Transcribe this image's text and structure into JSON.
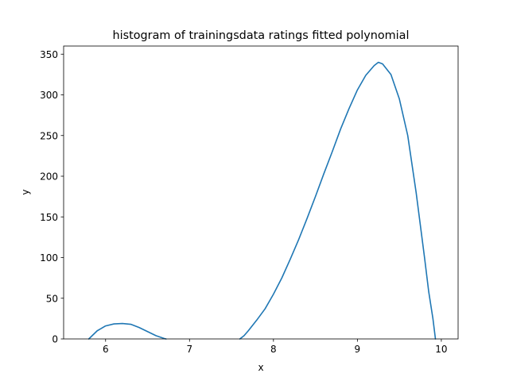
{
  "chart_data": {
    "type": "line",
    "title": "histogram of trainingsdata ratings fitted polynomial",
    "xlabel": "x",
    "ylabel": "y",
    "xlim": [
      5.5,
      10.2
    ],
    "ylim": [
      0,
      360
    ],
    "xticks": [
      6,
      7,
      8,
      9,
      10
    ],
    "xtick_labels": [
      "6",
      "7",
      "8",
      "9",
      "10"
    ],
    "yticks": [
      0,
      50,
      100,
      150,
      200,
      250,
      300,
      350
    ],
    "ytick_labels": [
      "0",
      "50",
      "100",
      "150",
      "200",
      "250",
      "300",
      "350"
    ],
    "grid": false,
    "legend": "none",
    "series": [
      {
        "color": "#1f77b4",
        "x": [
          5.8,
          5.9,
          6.0,
          6.1,
          6.2,
          6.3,
          6.4,
          6.5,
          6.6,
          6.7,
          6.72,
          7.6,
          7.65,
          7.7,
          7.8,
          7.9,
          8.0,
          8.1,
          8.2,
          8.3,
          8.4,
          8.5,
          8.6,
          8.7,
          8.8,
          8.9,
          9.0,
          9.1,
          9.2,
          9.25,
          9.3,
          9.4,
          9.5,
          9.6,
          9.7,
          9.8,
          9.85,
          9.9,
          9.93
        ],
        "y": [
          0,
          10,
          16,
          18.5,
          19,
          18,
          14,
          9,
          4,
          0.5,
          0,
          0,
          4,
          10,
          23,
          37,
          55,
          75,
          98,
          122,
          148,
          175,
          203,
          230,
          258,
          283,
          306,
          324,
          336,
          340,
          338,
          325,
          295,
          250,
          180,
          100,
          58,
          25,
          0
        ]
      }
    ]
  }
}
